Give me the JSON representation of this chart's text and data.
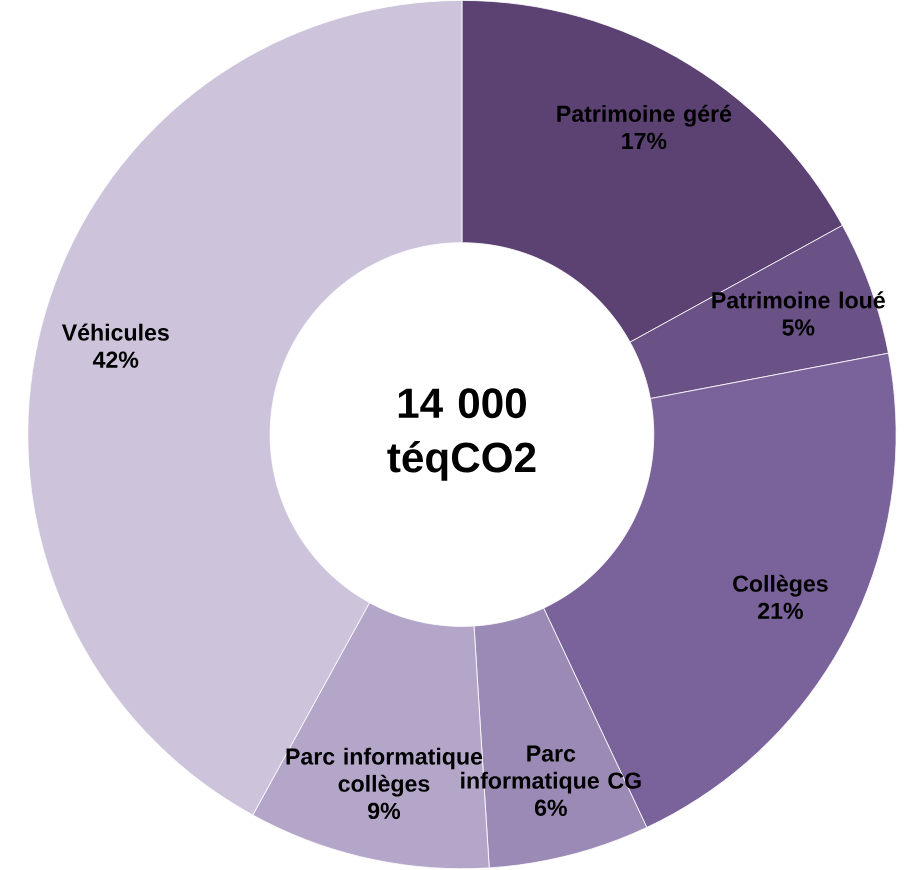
{
  "chart_data": {
    "type": "donut",
    "categories": [
      "Patrimoine géré",
      "Patrimoine loué",
      "Collèges",
      "Parc informatique CG",
      "Parc informatique collèges",
      "Véhicules"
    ],
    "values": [
      17,
      5,
      21,
      6,
      9,
      42
    ],
    "value_labels": [
      "17%",
      "5%",
      "21%",
      "6%",
      "9%",
      "42%"
    ],
    "colors": [
      "#5b4272",
      "#6a5186",
      "#7a629a",
      "#9b8ab5",
      "#b3a6c9",
      "#cdc4dc"
    ],
    "annotations": [
      "14 000 téqCO2"
    ]
  }
}
